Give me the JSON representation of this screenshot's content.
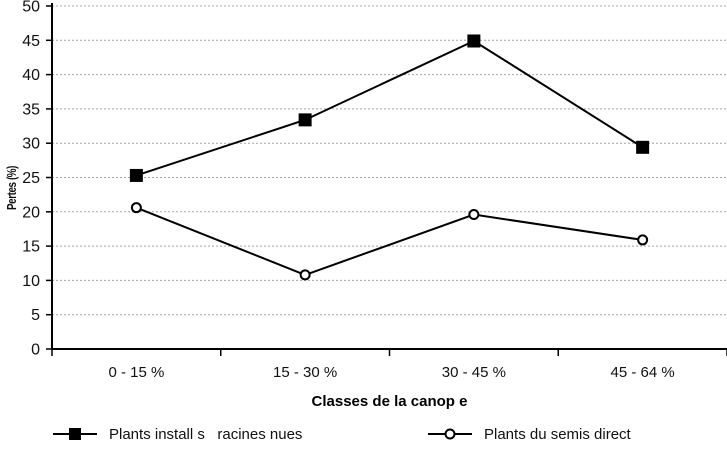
{
  "chart_data": {
    "type": "line",
    "title": "",
    "xlabel": "Classes de la canop e",
    "ylabel": "Pertes (%)",
    "categories": [
      "0 - 15 %",
      "15 - 30 %",
      "30 - 45 %",
      "45 - 64 %"
    ],
    "series": [
      {
        "name": "Plants install s   racines nues",
        "marker": "filled-square",
        "values": [
          25.3,
          33.4,
          44.9,
          29.4
        ]
      },
      {
        "name": "Plants du semis direct",
        "marker": "open-circle",
        "values": [
          20.6,
          10.8,
          19.6,
          15.9
        ]
      }
    ],
    "ylim": [
      0,
      50
    ],
    "ytick_step": 5,
    "yticks": [
      0,
      5,
      10,
      15,
      20,
      25,
      30,
      35,
      40,
      45,
      50
    ],
    "grid": "horizontal-dotted",
    "legend_position": "bottom",
    "colors": {
      "line": "#000000",
      "marker_fill": "#000000",
      "grid": "#a3a3a3",
      "background": "#ffffff",
      "text": "#111111"
    }
  }
}
